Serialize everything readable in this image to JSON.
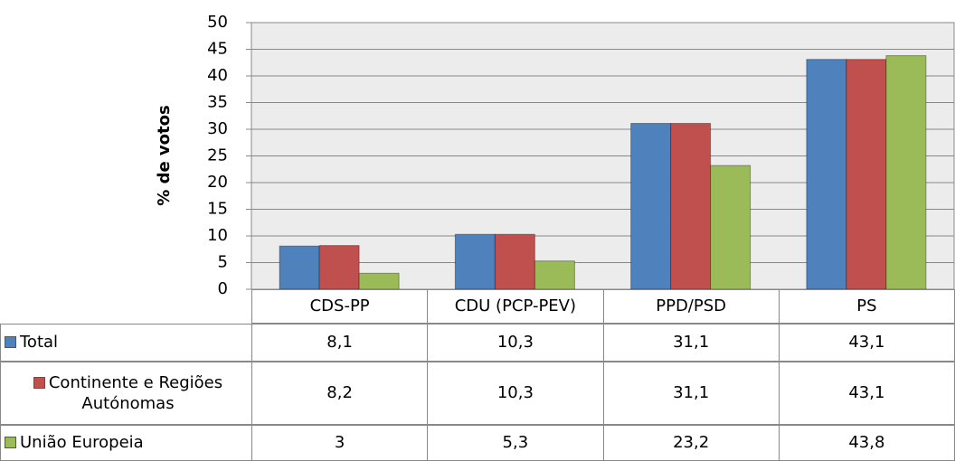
{
  "chart_data": {
    "type": "bar",
    "y_label": "% de votos",
    "categories": [
      "CDS-PP",
      "CDU (PCP-PEV)",
      "PPD/PSD",
      "PS"
    ],
    "series": [
      {
        "name": "Total",
        "color": "#4f81bd",
        "values": [
          8.1,
          10.3,
          31.1,
          43.1
        ],
        "value_labels": [
          "8,1",
          "10,3",
          "31,1",
          "43,1"
        ]
      },
      {
        "name": "Continente e Regiões Autónomas",
        "color": "#c0504d",
        "values": [
          8.2,
          10.3,
          31.1,
          43.1
        ],
        "value_labels": [
          "8,2",
          "10,3",
          "31,1",
          "43,1"
        ]
      },
      {
        "name": "União Europeia",
        "color": "#9bbb59",
        "values": [
          3,
          5.3,
          23.2,
          43.8
        ],
        "value_labels": [
          "3",
          "5,3",
          "23,2",
          "43,8"
        ]
      }
    ],
    "ylim": [
      0,
      50
    ],
    "yticks": [
      0,
      5,
      10,
      15,
      20,
      25,
      30,
      35,
      40,
      45,
      50
    ],
    "grid": true,
    "data_table": true
  }
}
